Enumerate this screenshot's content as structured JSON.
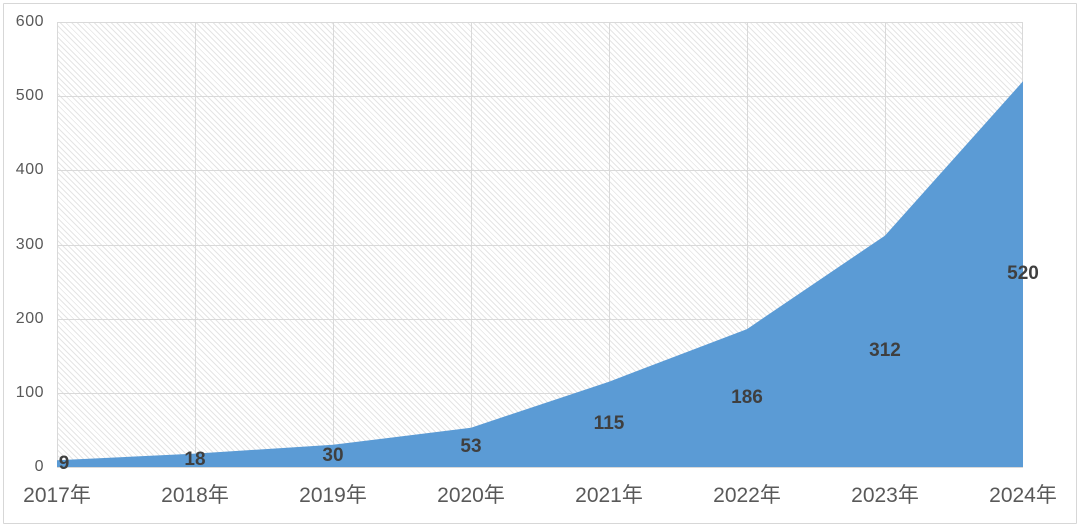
{
  "chart_data": {
    "type": "area",
    "title": "",
    "xlabel": "",
    "ylabel": "",
    "categories": [
      "2017年",
      "2018年",
      "2019年",
      "2020年",
      "2021年",
      "2022年",
      "2023年",
      "2024年"
    ],
    "values": [
      9,
      18,
      30,
      53,
      115,
      186,
      312,
      520
    ],
    "data_labels": [
      "9",
      "18",
      "30",
      "53",
      "115",
      "186",
      "312",
      "520"
    ],
    "ylim": [
      0,
      600
    ],
    "yticks": [
      0,
      100,
      200,
      300,
      400,
      500,
      600
    ],
    "ytick_labels": [
      "0",
      "100",
      "200",
      "300",
      "400",
      "500",
      "600"
    ],
    "grid": "horizontal-and-vertical",
    "legend": "none",
    "plot_background": "light-downward-diagonal-hatch",
    "colors": {
      "area_fill": "#5B9BD5",
      "data_label": "#3F3F3F",
      "axis_label": "#595959",
      "ytick_label": "#595959",
      "gridline": "#d9d9d9",
      "chart_border": "#d7d7d7",
      "hatch_line": "#e5e5e5"
    }
  }
}
